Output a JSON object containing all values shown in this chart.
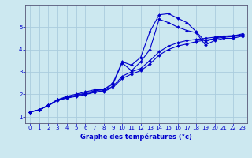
{
  "xlabel": "Graphe des températures (°c)",
  "bg_color": "#cce8f0",
  "grid_color": "#aaccdd",
  "line_color": "#0000cc",
  "xlim": [
    -0.5,
    23.5
  ],
  "ylim": [
    0.7,
    6.0
  ],
  "xticks": [
    0,
    1,
    2,
    3,
    4,
    5,
    6,
    7,
    8,
    9,
    10,
    11,
    12,
    13,
    14,
    15,
    16,
    17,
    18,
    19,
    20,
    21,
    22,
    23
  ],
  "yticks": [
    1,
    2,
    3,
    4,
    5
  ],
  "curve1_x": [
    0,
    1,
    2,
    3,
    4,
    5,
    6,
    7,
    8,
    9,
    10,
    11,
    12,
    13,
    14,
    15,
    16,
    17,
    18,
    19,
    20,
    21,
    22,
    23
  ],
  "curve1_y": [
    1.2,
    1.3,
    1.5,
    1.75,
    1.9,
    2.0,
    2.1,
    2.2,
    2.2,
    2.5,
    3.45,
    3.3,
    3.65,
    4.8,
    5.55,
    5.6,
    5.4,
    5.2,
    4.8,
    4.35,
    4.5,
    4.6,
    4.6,
    4.7
  ],
  "curve2_x": [
    0,
    1,
    2,
    3,
    4,
    5,
    6,
    7,
    8,
    9,
    10,
    11,
    12,
    13,
    14,
    15,
    16,
    17,
    18,
    19,
    20,
    21,
    22,
    23
  ],
  "curve2_y": [
    1.2,
    1.3,
    1.5,
    1.75,
    1.85,
    1.95,
    2.05,
    2.15,
    2.2,
    2.45,
    3.4,
    3.05,
    3.45,
    4.0,
    5.35,
    5.2,
    5.0,
    4.85,
    4.75,
    4.2,
    4.4,
    4.5,
    4.5,
    4.6
  ],
  "curve3_x": [
    0,
    1,
    2,
    3,
    4,
    5,
    6,
    7,
    8,
    9,
    10,
    11,
    12,
    13,
    14,
    15,
    16,
    17,
    18,
    19,
    20,
    21,
    22,
    23
  ],
  "curve3_y": [
    1.2,
    1.3,
    1.5,
    1.75,
    1.85,
    1.95,
    2.0,
    2.1,
    2.15,
    2.35,
    2.8,
    3.0,
    3.15,
    3.5,
    3.9,
    4.15,
    4.3,
    4.4,
    4.45,
    4.5,
    4.55,
    4.6,
    4.62,
    4.65
  ],
  "curve4_x": [
    0,
    1,
    2,
    3,
    4,
    5,
    6,
    7,
    8,
    9,
    10,
    11,
    12,
    13,
    14,
    15,
    16,
    17,
    18,
    19,
    20,
    21,
    22,
    23
  ],
  "curve4_y": [
    1.2,
    1.3,
    1.48,
    1.72,
    1.82,
    1.9,
    1.98,
    2.08,
    2.12,
    2.3,
    2.7,
    2.9,
    3.05,
    3.35,
    3.75,
    4.0,
    4.15,
    4.25,
    4.35,
    4.42,
    4.48,
    4.55,
    4.58,
    4.62
  ]
}
